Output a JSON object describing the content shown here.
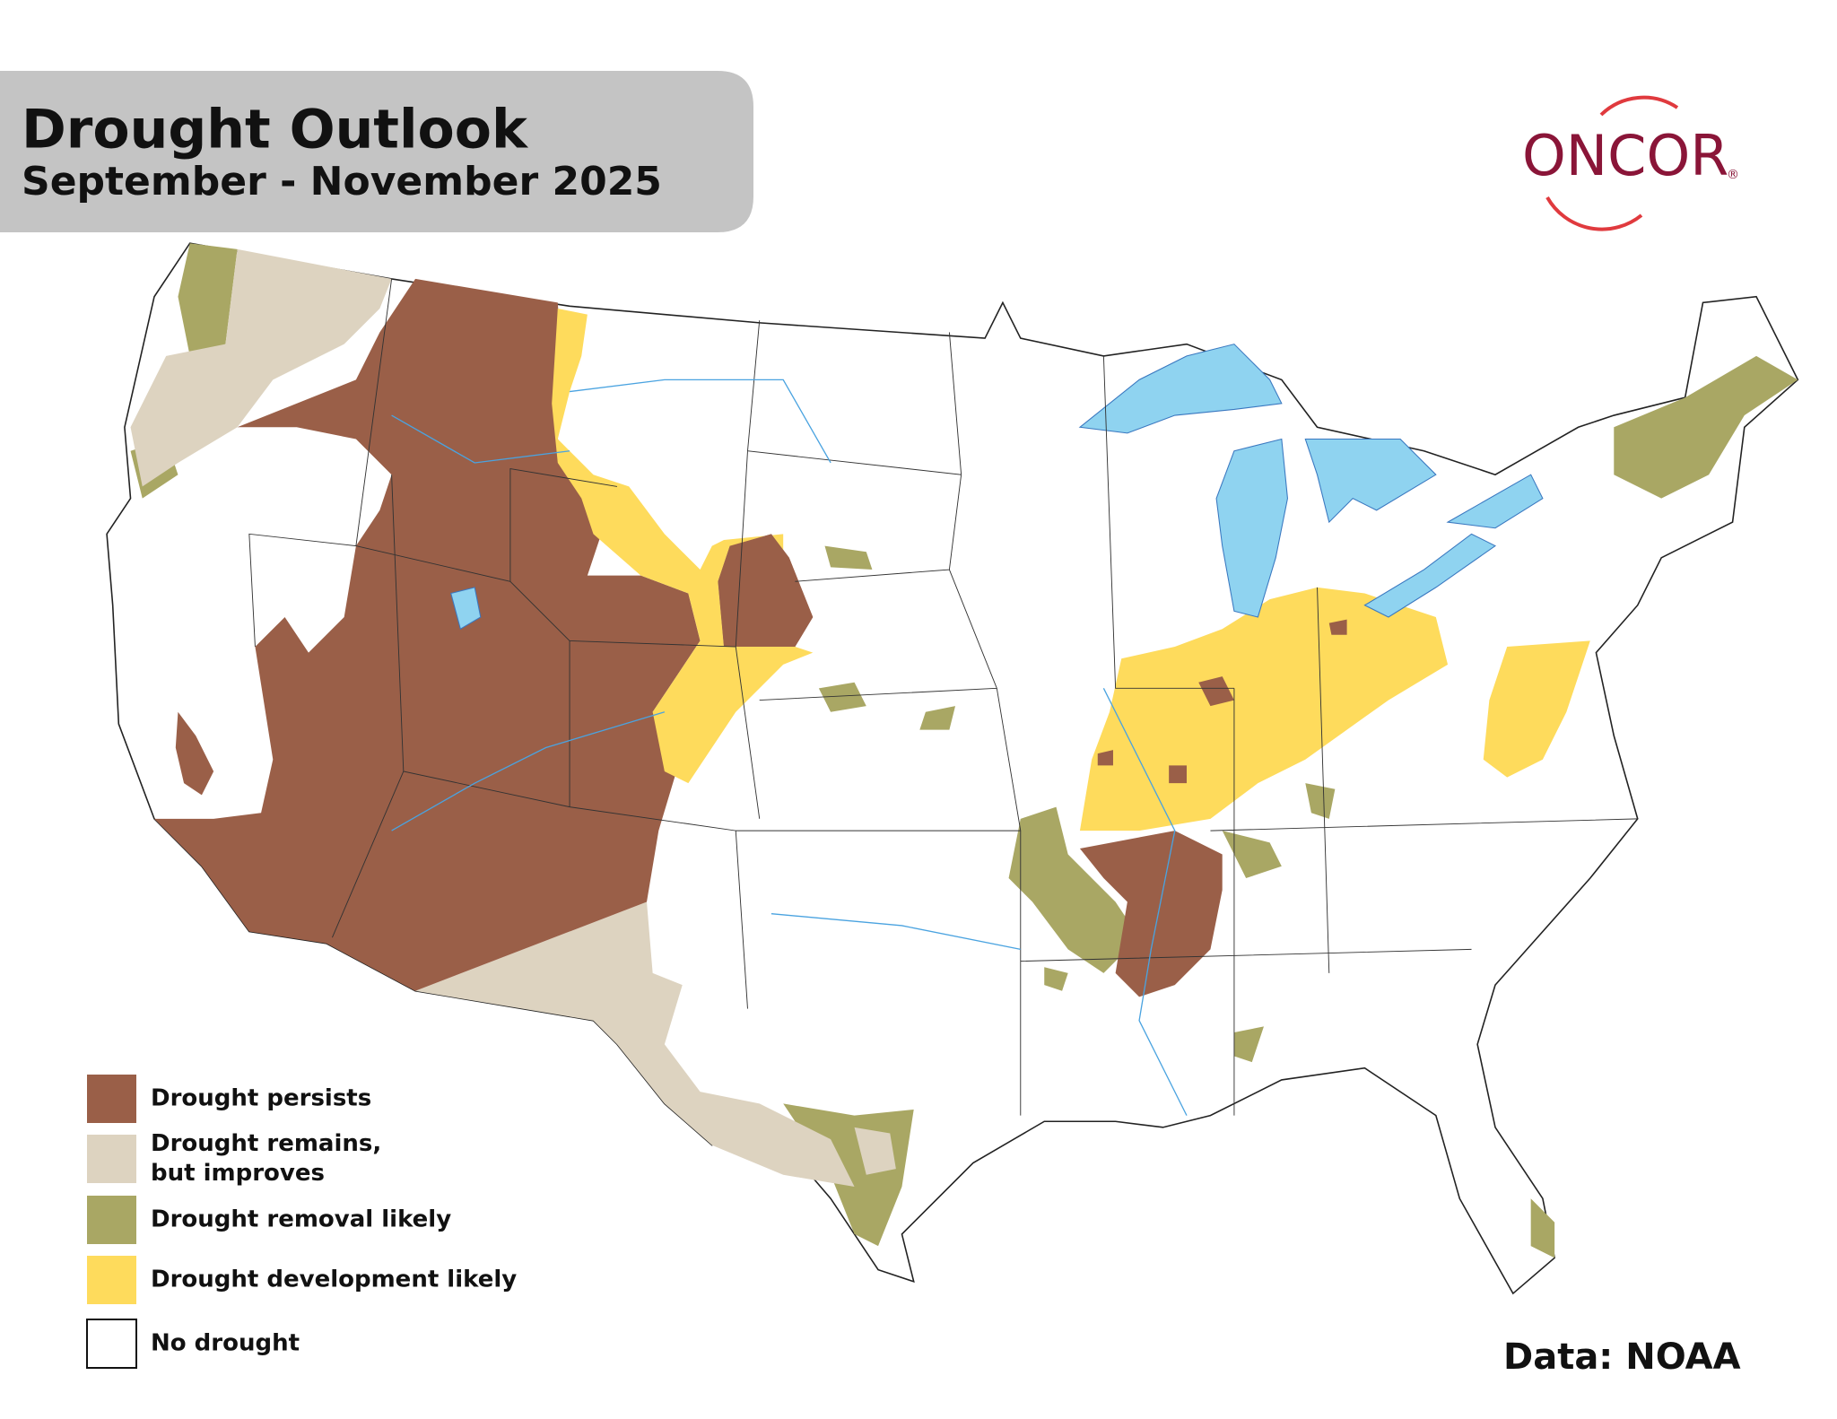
{
  "header": {
    "title": "Drought Outlook",
    "subtitle": "September - November 2025"
  },
  "logo": {
    "text": "ONCOR",
    "mark": "®"
  },
  "legend": {
    "items": [
      {
        "lines": [
          "Drought persists"
        ],
        "color": "#9a5f48"
      },
      {
        "lines": [
          "Drought remains,",
          "but improves"
        ],
        "color": "#ddd3c0"
      },
      {
        "lines": [
          "Drought removal likely"
        ],
        "color": "#a9a764"
      },
      {
        "lines": [
          "Drought development likely"
        ],
        "color": "#fedb5c"
      },
      {
        "lines": [
          "No drought"
        ],
        "color": "#ffffff"
      }
    ]
  },
  "source": "Data: NOAA"
}
